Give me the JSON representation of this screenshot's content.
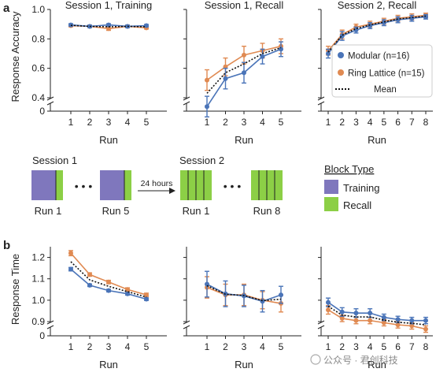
{
  "panel_letters": [
    "a",
    "b"
  ],
  "top_ylabel": "Response Accuracy",
  "bottom_ylabel": "Response Time",
  "xlabel": "Run",
  "colors": {
    "modular": "#4a74b8",
    "ring": "#e08a52",
    "mean": "#111111",
    "training": "#7f77bd",
    "recall": "#8ccf46"
  },
  "legend": {
    "modular": "Modular (n=16)",
    "ring": "Ring Lattice (n=15)",
    "mean": "Mean"
  },
  "schematic": {
    "session1": "Session 1",
    "session2": "Session 2",
    "arrow": "24 hours",
    "ellipsis": "• • •",
    "run_labels": [
      "Run 1",
      "Run 5",
      "Run 1",
      "Run 8"
    ],
    "legend_title": "Block Type",
    "training": "Training",
    "recall": "Recall"
  },
  "watermark": "公众号 · 君创科技",
  "chart_data": [
    {
      "id": "a1",
      "type": "line",
      "title": "Session 1, Training",
      "xlabel": "Run",
      "ylabel": "Response Accuracy",
      "x": [
        1,
        2,
        3,
        4,
        5
      ],
      "ylim": [
        0,
        1.0
      ],
      "yticks": [
        0,
        0.4,
        0.6,
        0.8,
        1.0
      ],
      "axis_break": true,
      "series": [
        {
          "name": "Modular (n=16)",
          "values": [
            0.895,
            0.885,
            0.895,
            0.885,
            0.89
          ],
          "err": [
            0.008,
            0.008,
            0.008,
            0.008,
            0.008
          ]
        },
        {
          "name": "Ring Lattice (n=15)",
          "values": [
            0.89,
            0.885,
            0.87,
            0.885,
            0.875
          ],
          "err": [
            0.008,
            0.008,
            0.012,
            0.008,
            0.008
          ]
        },
        {
          "name": "Mean",
          "values": [
            0.892,
            0.885,
            0.882,
            0.885,
            0.882
          ]
        }
      ]
    },
    {
      "id": "a2",
      "type": "line",
      "title": "Session 1, Recall",
      "xlabel": "Run",
      "x": [
        1,
        2,
        3,
        4,
        5
      ],
      "ylim": [
        0,
        1.0
      ],
      "axis_break": true,
      "series": [
        {
          "name": "Modular (n=16)",
          "values": [
            0.34,
            0.53,
            0.57,
            0.68,
            0.73
          ],
          "err": [
            0.07,
            0.07,
            0.07,
            0.05,
            0.05
          ]
        },
        {
          "name": "Ring Lattice (n=15)",
          "values": [
            0.52,
            0.61,
            0.69,
            0.72,
            0.75
          ],
          "err": [
            0.07,
            0.06,
            0.06,
            0.05,
            0.05
          ]
        },
        {
          "name": "Mean",
          "values": [
            0.43,
            0.57,
            0.63,
            0.7,
            0.74
          ]
        }
      ]
    },
    {
      "id": "a3",
      "type": "line",
      "title": "Session 2, Recall",
      "xlabel": "Run",
      "x": [
        1,
        2,
        3,
        4,
        5,
        6,
        7,
        8
      ],
      "ylim": [
        0,
        1.0
      ],
      "axis_break": true,
      "series": [
        {
          "name": "Modular (n=16)",
          "values": [
            0.7,
            0.82,
            0.86,
            0.89,
            0.91,
            0.93,
            0.94,
            0.95
          ],
          "err": [
            0.03,
            0.03,
            0.02,
            0.02,
            0.02,
            0.02,
            0.02,
            0.015
          ]
        },
        {
          "name": "Ring Lattice (n=15)",
          "values": [
            0.72,
            0.83,
            0.88,
            0.9,
            0.92,
            0.94,
            0.95,
            0.96
          ],
          "err": [
            0.03,
            0.03,
            0.02,
            0.02,
            0.02,
            0.02,
            0.02,
            0.015
          ]
        },
        {
          "name": "Mean",
          "values": [
            0.71,
            0.825,
            0.87,
            0.895,
            0.915,
            0.935,
            0.945,
            0.955
          ]
        }
      ]
    },
    {
      "id": "b1",
      "type": "line",
      "xlabel": "Run",
      "ylabel": "Response Time",
      "x": [
        1,
        2,
        3,
        4,
        5
      ],
      "ylim": [
        0,
        1.25
      ],
      "yticks": [
        0,
        0.9,
        1.0,
        1.1,
        1.2
      ],
      "axis_break": true,
      "series": [
        {
          "name": "Modular (n=16)",
          "values": [
            1.145,
            1.07,
            1.045,
            1.03,
            1.005
          ],
          "err": [
            0.008,
            0.006,
            0.006,
            0.006,
            0.006
          ]
        },
        {
          "name": "Ring Lattice (n=15)",
          "values": [
            1.22,
            1.12,
            1.085,
            1.05,
            1.025
          ],
          "err": [
            0.012,
            0.008,
            0.008,
            0.008,
            0.008
          ]
        },
        {
          "name": "Mean",
          "values": [
            1.18,
            1.095,
            1.065,
            1.04,
            1.015
          ]
        }
      ]
    },
    {
      "id": "b2",
      "type": "line",
      "xlabel": "Run",
      "x": [
        1,
        2,
        3,
        4,
        5
      ],
      "ylim": [
        0,
        1.25
      ],
      "axis_break": true,
      "series": [
        {
          "name": "Modular (n=16)",
          "values": [
            1.075,
            1.03,
            1.02,
            0.995,
            1.025
          ],
          "err": [
            0.06,
            0.06,
            0.05,
            0.05,
            0.04
          ]
        },
        {
          "name": "Ring Lattice (n=15)",
          "values": [
            1.06,
            1.025,
            1.025,
            1.0,
            0.985
          ],
          "err": [
            0.05,
            0.05,
            0.05,
            0.04,
            0.04
          ]
        },
        {
          "name": "Mean",
          "values": [
            1.068,
            1.028,
            1.022,
            0.998,
            1.005
          ]
        }
      ]
    },
    {
      "id": "b3",
      "type": "line",
      "xlabel": "Run",
      "x": [
        1,
        2,
        3,
        4,
        5,
        6,
        7,
        8
      ],
      "ylim": [
        0,
        1.25
      ],
      "axis_break": true,
      "series": [
        {
          "name": "Modular (n=16)",
          "values": [
            0.99,
            0.945,
            0.94,
            0.94,
            0.92,
            0.91,
            0.905,
            0.905
          ],
          "err": [
            0.02,
            0.02,
            0.02,
            0.02,
            0.015,
            0.015,
            0.015,
            0.015
          ]
        },
        {
          "name": "Ring Lattice (n=15)",
          "values": [
            0.955,
            0.915,
            0.905,
            0.905,
            0.895,
            0.885,
            0.88,
            0.865
          ],
          "err": [
            0.02,
            0.015,
            0.015,
            0.015,
            0.015,
            0.015,
            0.015,
            0.015
          ]
        },
        {
          "name": "Mean",
          "values": [
            0.972,
            0.93,
            0.922,
            0.922,
            0.907,
            0.897,
            0.892,
            0.885
          ]
        }
      ]
    }
  ]
}
